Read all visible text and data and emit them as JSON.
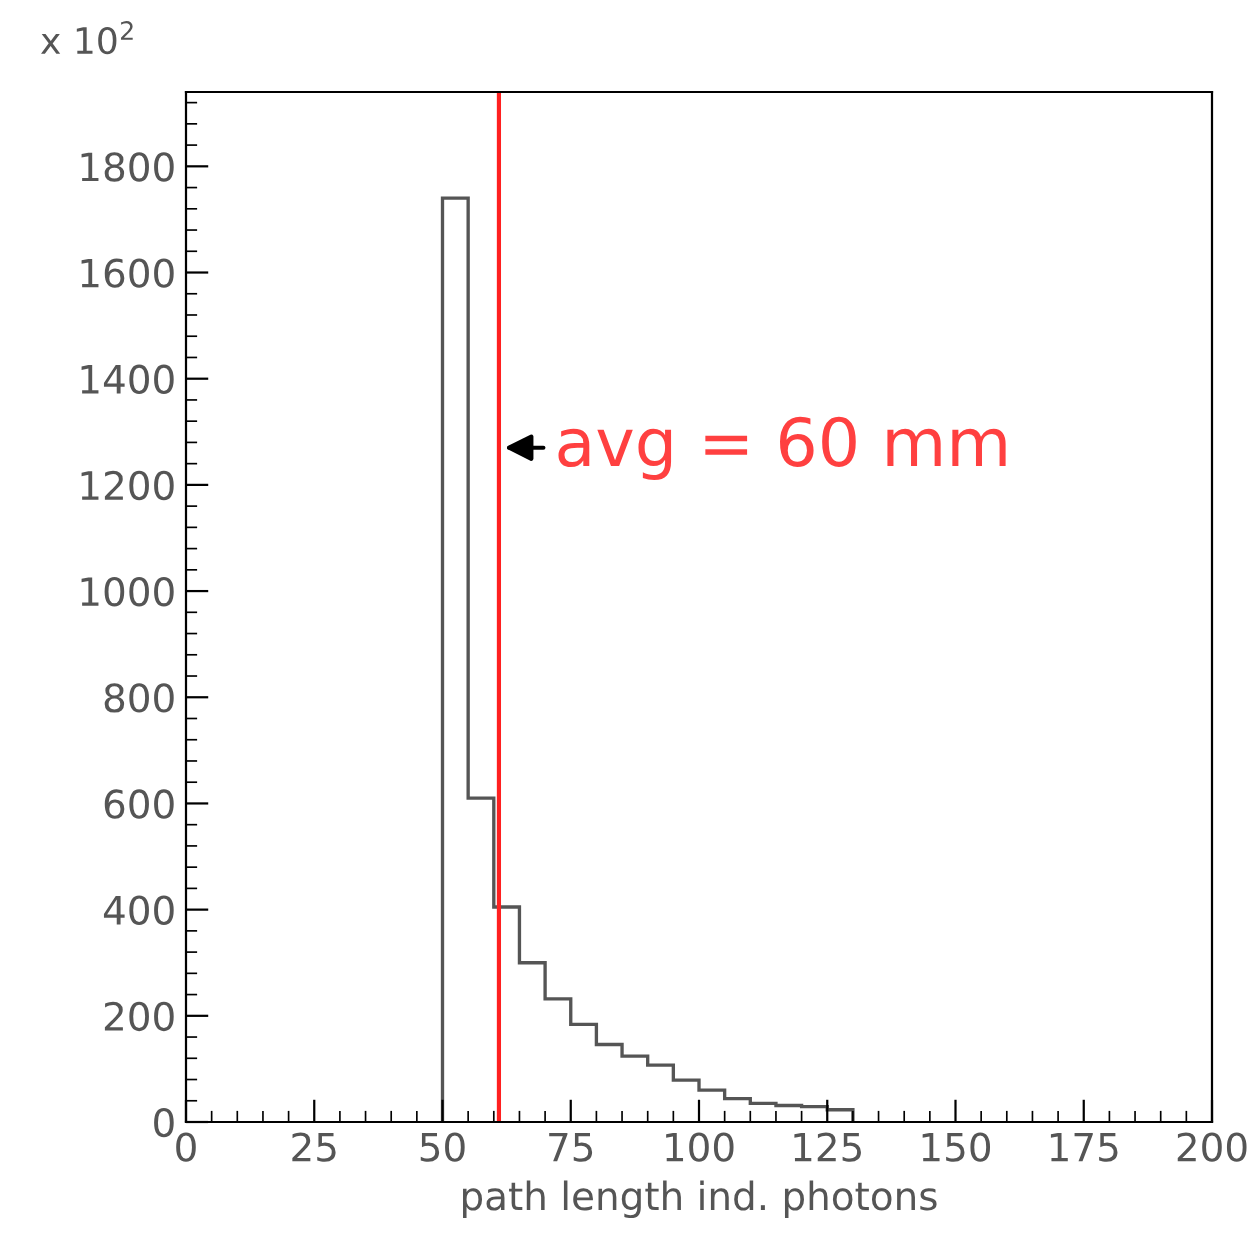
{
  "chart_data": {
    "type": "histogram",
    "xlabel": "path length ind. photons",
    "bins": [
      50,
      55,
      60,
      65,
      70,
      75,
      80,
      85,
      90,
      95,
      100,
      105,
      110,
      115,
      120,
      125,
      130
    ],
    "values": [
      1740,
      610,
      405,
      300,
      232,
      184,
      146,
      124,
      107,
      79,
      60,
      44,
      35,
      31,
      29,
      23
    ],
    "color": "#555555",
    "xlim": [
      0,
      200
    ],
    "xticks": [
      0,
      25,
      50,
      75,
      100,
      125,
      150,
      175,
      200
    ],
    "ylim": [
      0,
      1940
    ],
    "yticks": [
      0,
      200,
      400,
      600,
      800,
      1000,
      1200,
      1400,
      1600,
      1800
    ],
    "ref_lines": [
      {
        "axis": "x",
        "value": 61,
        "color": "#ff2020"
      }
    ],
    "annotations": [
      "x 10$^{2}$",
      {
        "text": "avg = 60 mm",
        "x": 61,
        "y": 1270
      }
    ],
    "grid": false,
    "legend": false
  }
}
